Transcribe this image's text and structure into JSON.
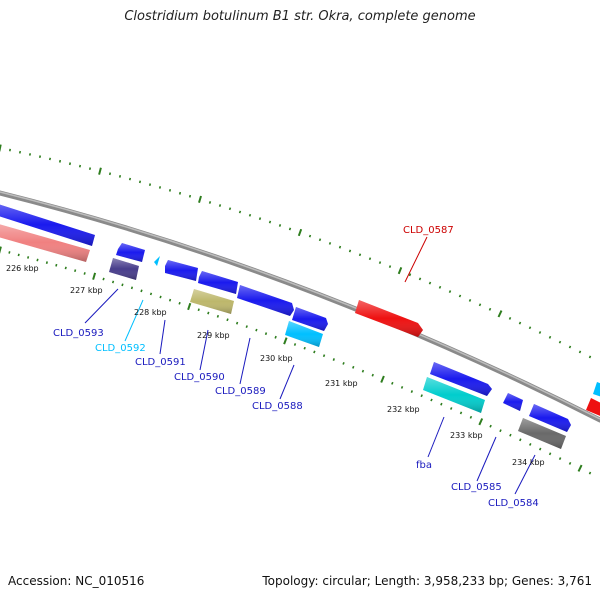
{
  "header": {
    "title": "Clostridium botulinum B1 str. Okra, complete genome"
  },
  "footer": {
    "accession": "Accession: NC_010516",
    "summary": "Topology: circular; Length: 3,958,233 bp; Genes: 3,761"
  },
  "ruler": {
    "tick_color": "#2e7d1e",
    "backbone_color": "#808080",
    "labels": [
      "226 kbp",
      "227 kbp",
      "228 kbp",
      "229 kbp",
      "230 kbp",
      "231 kbp",
      "232 kbp",
      "233 kbp",
      "234 kbp"
    ]
  },
  "genes": [
    {
      "id": "g-left-blue",
      "label": "",
      "color": "#1a1aee"
    },
    {
      "id": "g-left-pink",
      "label": "",
      "color": "#f08080"
    },
    {
      "id": "g-0593",
      "label": "CLD_0593",
      "color": "#1a1aee",
      "label_color": "#1a1abe"
    },
    {
      "id": "g-navy",
      "label": "",
      "color": "#483d8b"
    },
    {
      "id": "g-0592",
      "label": "CLD_0592",
      "color": "#00bfff",
      "label_color": "#00bfff"
    },
    {
      "id": "g-0591",
      "label": "CLD_0591",
      "color": "#1a1aee",
      "label_color": "#1a1abe"
    },
    {
      "id": "g-0590",
      "label": "CLD_0590",
      "color": "#1a1aee",
      "label_color": "#1a1abe"
    },
    {
      "id": "g-khaki",
      "label": "",
      "color": "#bdb76b"
    },
    {
      "id": "g-0589",
      "label": "CLD_0589",
      "color": "#1a1aee",
      "label_color": "#1a1abe"
    },
    {
      "id": "g-0588",
      "label": "CLD_0588",
      "color": "#00bfff",
      "label_color": "#1a1abe"
    },
    {
      "id": "g-0588b",
      "label": "",
      "color": "#1a1aee"
    },
    {
      "id": "g-0587",
      "label": "CLD_0587",
      "color": "#ee1111",
      "label_color": "#cc0000"
    },
    {
      "id": "g-fba-top",
      "label": "",
      "color": "#1a1aee"
    },
    {
      "id": "g-fba",
      "label": "fba",
      "color": "#00cdcd",
      "label_color": "#1a1abe"
    },
    {
      "id": "g-0585",
      "label": "CLD_0585",
      "color": "#1a1aee",
      "label_color": "#1a1abe"
    },
    {
      "id": "g-0585b",
      "label": "",
      "color": "#1a1aee"
    },
    {
      "id": "g-0584",
      "label": "CLD_0584",
      "color": "#696969",
      "label_color": "#1a1abe"
    },
    {
      "id": "g-right-cyan",
      "label": "",
      "color": "#00bfff"
    },
    {
      "id": "g-right-red",
      "label": "",
      "color": "#ee1111"
    }
  ]
}
